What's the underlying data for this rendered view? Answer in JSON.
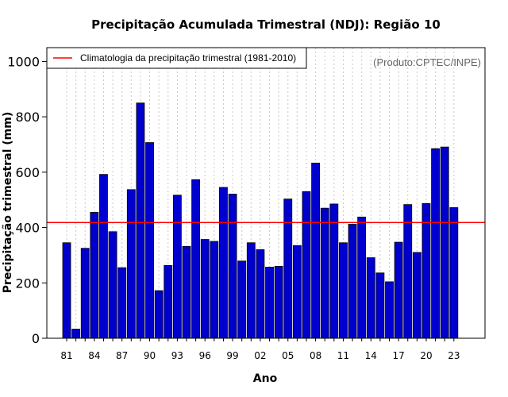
{
  "chart_data": {
    "type": "bar",
    "title": "Precipitação Acumulada Trimestral (NDJ): Região 10",
    "xlabel": "Ano",
    "ylabel": "Precipitação trimestral (mm)",
    "ylim": [
      0,
      1050
    ],
    "yticks": [
      0,
      200,
      400,
      600,
      800,
      1000
    ],
    "categories": [
      "81",
      "82",
      "83",
      "84",
      "85",
      "86",
      "87",
      "88",
      "89",
      "90",
      "91",
      "92",
      "93",
      "94",
      "95",
      "96",
      "97",
      "98",
      "99",
      "00",
      "01",
      "02",
      "03",
      "04",
      "05",
      "06",
      "07",
      "08",
      "09",
      "10",
      "11",
      "12",
      "13",
      "14",
      "15",
      "16",
      "17",
      "18",
      "19",
      "20",
      "21",
      "22",
      "23"
    ],
    "xtick_labels": [
      "81",
      "84",
      "87",
      "90",
      "93",
      "96",
      "99",
      "02",
      "05",
      "08",
      "11",
      "14",
      "17",
      "20",
      "23"
    ],
    "series": [
      {
        "name": "Precipitação trimestral",
        "color": "#0000cc",
        "values": [
          345,
          33,
          325,
          455,
          592,
          385,
          255,
          537,
          850,
          707,
          172,
          263,
          517,
          332,
          573,
          357,
          350,
          545,
          521,
          279,
          345,
          320,
          257,
          260,
          503,
          335,
          530,
          633,
          470,
          485,
          345,
          412,
          438,
          291,
          236,
          204,
          347,
          483,
          310,
          487,
          685,
          691,
          472
        ]
      }
    ],
    "reference_line": {
      "label": "Climatologia da precipitação trimestral (1981-2010)",
      "value": 418,
      "color": "#ff0000"
    },
    "legend_position": "top-left",
    "grid": "vertical-dotted",
    "credit": "(Produto:CPTEC/INPE)"
  }
}
